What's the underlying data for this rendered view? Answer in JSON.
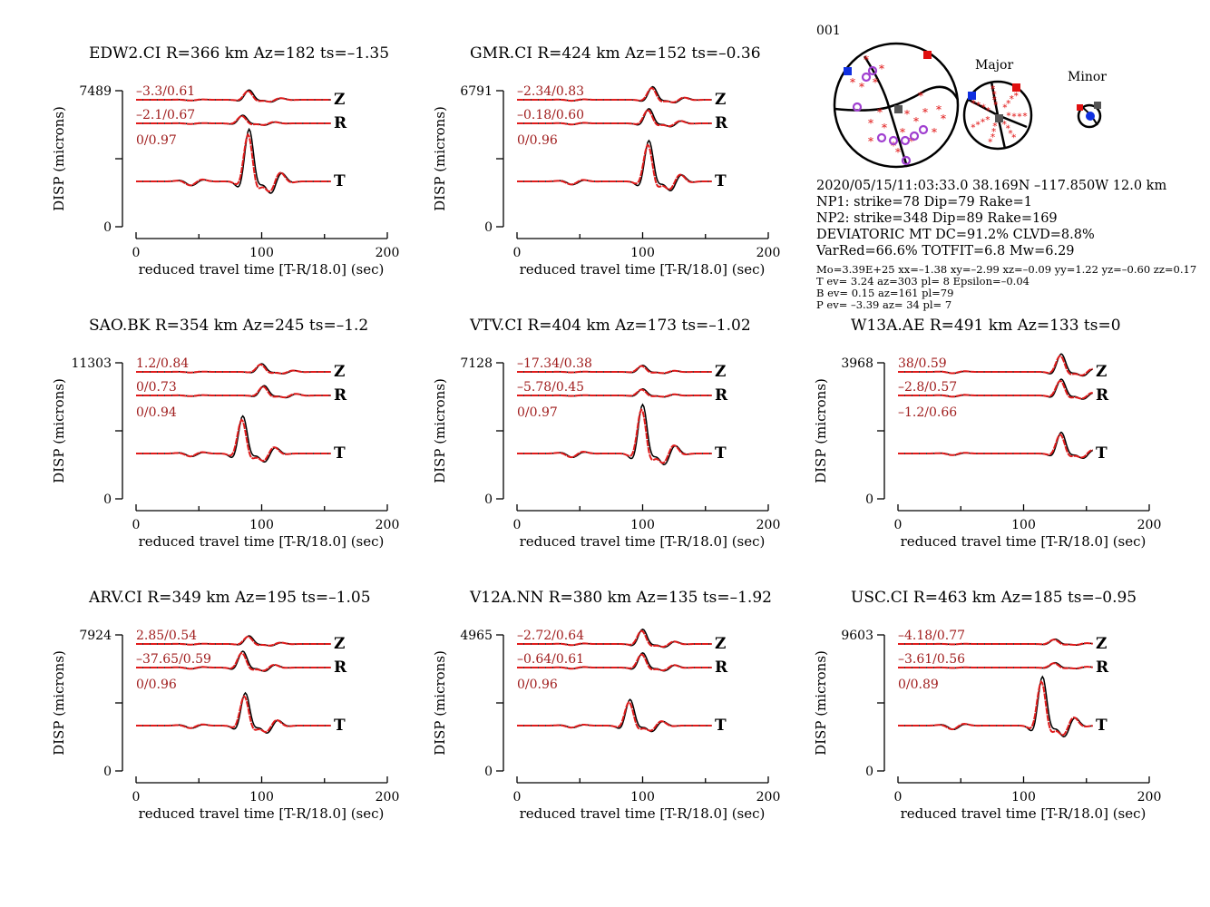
{
  "event_id": "001",
  "colors": {
    "observed": "#000000",
    "synthetic": "#e01b1b",
    "label": "#a01e1e",
    "blue": "#1030e0",
    "red": "#e01010",
    "gray": "#555555",
    "purple": "#a040d0"
  },
  "mechanism": {
    "major_label": "Major",
    "minor_label": "Minor",
    "info_lines": [
      "2020/05/15/11:03:33.0 38.169N –117.850W 12.0 km",
      "NP1: strike=78 Dip=79 Rake=1",
      "NP2: strike=348 Dip=89 Rake=169",
      "DEVIATORIC MT DC=91.2% CLVD=8.8%",
      "VarRed=66.6% TOTFIT=6.8 Mw=6.29"
    ],
    "small_lines": [
      "Mo=3.39E+25 xx=–1.38 xy=–2.99 xz=–0.09 yy=1.22 yz=–0.60 zz=0.17",
      "T ev=  3.24 az=303 pl= 8 Epsilon=–0.04",
      "B ev=  0.15 az=161 pl=79",
      "P ev= –3.39 az= 34 pl= 7"
    ]
  },
  "chart_data": [
    {
      "type": "line",
      "title": "EDW2.CI R=366 km Az=182 ts=–1.35",
      "ylabel": "DISP (microns)",
      "xlabel": "reduced travel time [T-R/18.0] (sec)",
      "xlim": [
        0,
        200
      ],
      "xticks": [
        "0",
        "100",
        "200"
      ],
      "ymax_label": "7489",
      "ymin_label": "0",
      "traces": [
        {
          "component": "Z",
          "label": "–3.3/0.61",
          "peak": 90,
          "amp": 0.6
        },
        {
          "component": "R",
          "label": "–2.1/0.67",
          "peak": 85,
          "amp": 0.5
        },
        {
          "component": "T",
          "label": "0/0.97",
          "peak": 90,
          "amp": 3.2
        }
      ]
    },
    {
      "type": "line",
      "title": "GMR.CI R=424 km Az=152 ts=–0.36",
      "ylabel": "DISP (microns)",
      "xlabel": "reduced travel time [T-R/18.0] (sec)",
      "xlim": [
        0,
        200
      ],
      "xticks": [
        "0",
        "100",
        "200"
      ],
      "ymax_label": "6791",
      "ymin_label": "0",
      "traces": [
        {
          "component": "Z",
          "label": "–2.34/0.83",
          "peak": 108,
          "amp": 0.8
        },
        {
          "component": "R",
          "label": "–0.18/0.60",
          "peak": 105,
          "amp": 0.9
        },
        {
          "component": "T",
          "label": "0/0.96",
          "peak": 105,
          "amp": 2.5
        }
      ]
    },
    null,
    {
      "type": "line",
      "title": "SAO.BK R=354 km Az=245 ts=–1.2",
      "ylabel": "DISP (microns)",
      "xlabel": "reduced travel time [T-R/18.0] (sec)",
      "xlim": [
        0,
        200
      ],
      "xticks": [
        "0",
        "100",
        "200"
      ],
      "ymax_label": "11303",
      "ymin_label": "0",
      "traces": [
        {
          "component": "Z",
          "label": "1.2/0.84",
          "peak": 100,
          "amp": 0.5
        },
        {
          "component": "R",
          "label": "0/0.73",
          "peak": 102,
          "amp": 0.6
        },
        {
          "component": "T",
          "label": "0/0.94",
          "peak": 85,
          "amp": 2.3
        }
      ]
    },
    {
      "type": "line",
      "title": "VTV.CI R=404 km Az=173 ts=–1.02",
      "ylabel": "DISP (microns)",
      "xlabel": "reduced travel time [T-R/18.0] (sec)",
      "xlim": [
        0,
        200
      ],
      "xticks": [
        "0",
        "100",
        "200"
      ],
      "ymax_label": "7128",
      "ymin_label": "0",
      "traces": [
        {
          "component": "Z",
          "label": "–17.34/0.38",
          "peak": 100,
          "amp": 0.4
        },
        {
          "component": "R",
          "label": "–5.78/0.45",
          "peak": 100,
          "amp": 0.4
        },
        {
          "component": "T",
          "label": "0/0.97",
          "peak": 100,
          "amp": 3.0
        }
      ]
    },
    {
      "type": "line",
      "title": "W13A.AE R=491 km Az=133 ts=0",
      "ylabel": "DISP (microns)",
      "xlabel": "reduced travel time [T-R/18.0] (sec)",
      "xlim": [
        0,
        200
      ],
      "xticks": [
        "0",
        "100",
        "200"
      ],
      "ymax_label": "3968",
      "ymin_label": "0",
      "traces": [
        {
          "component": "Z",
          "label": "38/0.59",
          "peak": 130,
          "amp": 1.1
        },
        {
          "component": "R",
          "label": "–2.8/0.57",
          "peak": 130,
          "amp": 1.0
        },
        {
          "component": "T",
          "label": "–1.2/0.66",
          "peak": 130,
          "amp": 1.3
        }
      ]
    },
    {
      "type": "line",
      "title": "ARV.CI R=349 km Az=195 ts=–1.05",
      "ylabel": "DISP (microns)",
      "xlabel": "reduced travel time [T-R/18.0] (sec)",
      "xlim": [
        0,
        200
      ],
      "xticks": [
        "0",
        "100",
        "200"
      ],
      "ymax_label": "7924",
      "ymin_label": "0",
      "traces": [
        {
          "component": "Z",
          "label": "2.85/0.54",
          "peak": 90,
          "amp": 0.5
        },
        {
          "component": "R",
          "label": "–37.65/0.59",
          "peak": 85,
          "amp": 1.0
        },
        {
          "component": "T",
          "label": "0/0.96",
          "peak": 87,
          "amp": 2.0
        }
      ]
    },
    {
      "type": "line",
      "title": "V12A.NN R=380 km Az=135 ts=–1.92",
      "ylabel": "DISP (microns)",
      "xlabel": "reduced travel time [T-R/18.0] (sec)",
      "xlim": [
        0,
        200
      ],
      "xticks": [
        "0",
        "100",
        "200"
      ],
      "ymax_label": "4965",
      "ymin_label": "0",
      "traces": [
        {
          "component": "Z",
          "label": "–2.72/0.64",
          "peak": 100,
          "amp": 0.9
        },
        {
          "component": "R",
          "label": "–0.64/0.61",
          "peak": 100,
          "amp": 0.9
        },
        {
          "component": "T",
          "label": "0/0.96",
          "peak": 90,
          "amp": 1.6
        }
      ]
    },
    {
      "type": "line",
      "title": "USC.CI R=463 km Az=185 ts=–0.95",
      "ylabel": "DISP (microns)",
      "xlabel": "reduced travel time [T-R/18.0] (sec)",
      "xlim": [
        0,
        200
      ],
      "xticks": [
        "0",
        "100",
        "200"
      ],
      "ymax_label": "9603",
      "ymin_label": "0",
      "traces": [
        {
          "component": "Z",
          "label": "–4.18/0.77",
          "peak": 125,
          "amp": 0.3
        },
        {
          "component": "R",
          "label": "–3.61/0.56",
          "peak": 125,
          "amp": 0.3
        },
        {
          "component": "T",
          "label": "0/0.89",
          "peak": 115,
          "amp": 3.0
        }
      ]
    }
  ]
}
